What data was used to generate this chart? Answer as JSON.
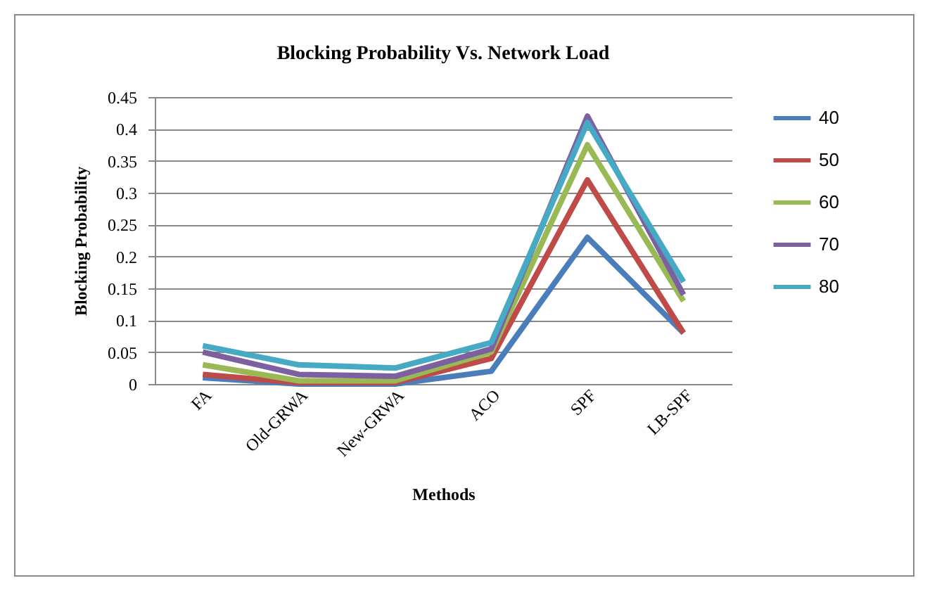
{
  "chart_data": {
    "type": "line",
    "title": "Blocking Probability Vs. Network Load",
    "xlabel": "Methods",
    "ylabel": "Blocking Probability",
    "categories": [
      "FA",
      "Old-GRWA",
      "New-GRWA",
      "ACO",
      "SPF",
      "LB-SPF"
    ],
    "series": [
      {
        "name": "40",
        "color": "#4a7ebb",
        "values": [
          0.01,
          0,
          0,
          0.02,
          0.23,
          0.08
        ]
      },
      {
        "name": "50",
        "color": "#be4b48",
        "values": [
          0.015,
          0.002,
          0.002,
          0.04,
          0.32,
          0.08
        ]
      },
      {
        "name": "60",
        "color": "#98b954",
        "values": [
          0.03,
          0.005,
          0.005,
          0.05,
          0.375,
          0.13
        ]
      },
      {
        "name": "70",
        "color": "#7d60a0",
        "values": [
          0.05,
          0.015,
          0.012,
          0.055,
          0.42,
          0.14
        ]
      },
      {
        "name": "80",
        "color": "#46aac5",
        "values": [
          0.06,
          0.03,
          0.025,
          0.065,
          0.41,
          0.16
        ]
      }
    ],
    "ylim": [
      0,
      0.45
    ],
    "yticks": [
      0,
      0.05,
      0.1,
      0.15,
      0.2,
      0.25,
      0.3,
      0.35,
      0.4,
      0.45
    ],
    "grid": "y",
    "legend": "right",
    "marker": "none",
    "line_style": "solid"
  }
}
